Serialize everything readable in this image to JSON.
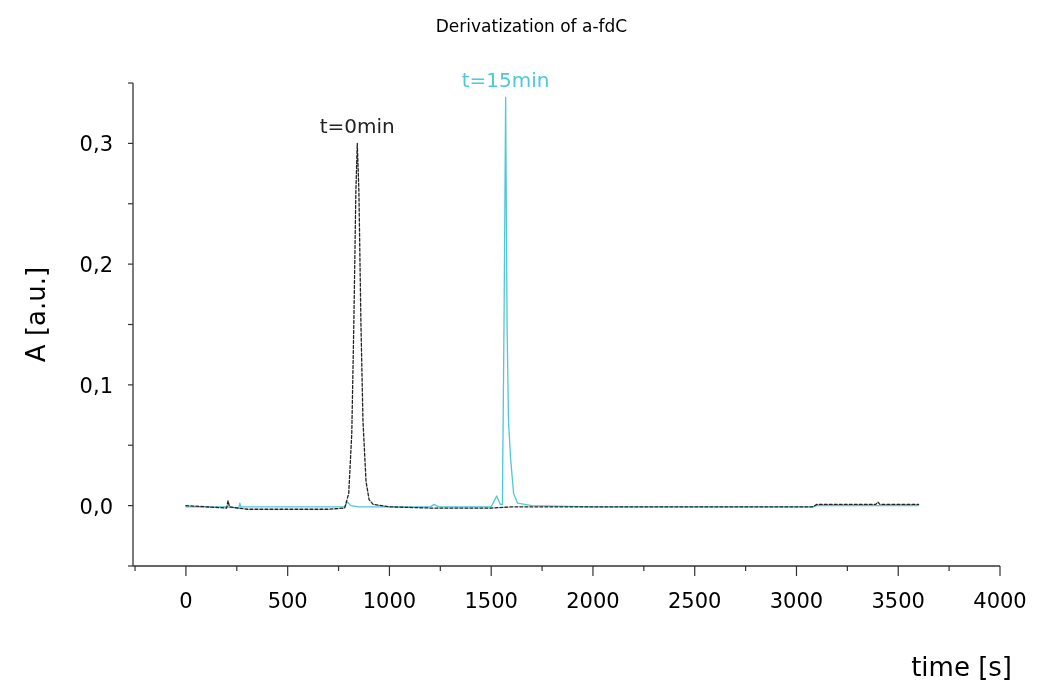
{
  "chart_data": {
    "type": "line",
    "title": "Derivatization of a-fdC",
    "xlabel": "time [s]",
    "ylabel": "A [a.u.]",
    "xlim": [
      -260,
      4000
    ],
    "ylim": [
      -0.05,
      0.35
    ],
    "xticks": [
      {
        "value": -250,
        "label": null
      },
      0,
      {
        "value": 250,
        "label": null
      },
      500,
      {
        "value": 750,
        "label": null
      },
      1000,
      {
        "value": 1250,
        "label": null
      },
      1500,
      {
        "value": 1750,
        "label": null
      },
      2000,
      {
        "value": 2250,
        "label": null
      },
      2500,
      {
        "value": 2750,
        "label": null
      },
      3000,
      {
        "value": 3250,
        "label": null
      },
      3500,
      {
        "value": 3750,
        "label": null
      },
      4000
    ],
    "yticks": [
      {
        "value": -0.05,
        "label": null
      },
      {
        "value": 0,
        "label": "0,0"
      },
      {
        "value": 0.05,
        "label": null
      },
      {
        "value": 0.1,
        "label": "0,1"
      },
      {
        "value": 0.15,
        "label": null
      },
      {
        "value": 0.2,
        "label": "0,2"
      },
      {
        "value": 0.25,
        "label": null
      },
      {
        "value": 0.3,
        "label": "0,3"
      },
      {
        "value": 0.35,
        "label": null
      }
    ],
    "grid": false,
    "series": [
      {
        "color": "#222222",
        "line_style": "dashed",
        "x": [
          0,
          100,
          200,
          207,
          214,
          300,
          500,
          700,
          780,
          800,
          815,
          825,
          835,
          842,
          850,
          860,
          870,
          885,
          900,
          920,
          1000,
          1200,
          1500,
          1600,
          2000,
          2500,
          3000,
          3080,
          3100,
          3300,
          3390,
          3400,
          3410,
          3500,
          3600
        ],
        "values": [
          0,
          -0.001,
          -0.002,
          0.004,
          -0.001,
          -0.003,
          -0.003,
          -0.003,
          -0.002,
          0.01,
          0.06,
          0.15,
          0.26,
          0.3,
          0.26,
          0.15,
          0.07,
          0.02,
          0.005,
          0.001,
          -0.001,
          -0.002,
          -0.002,
          -0.001,
          -0.001,
          -0.001,
          -0.001,
          -0.001,
          0.001,
          0.001,
          0.001,
          0.003,
          0.001,
          0.001,
          0.001
        ]
      },
      {
        "color": "#4ec9d6",
        "line_style": "solid",
        "x": [
          0,
          200,
          260,
          265,
          270,
          400,
          700,
          780,
          793,
          810,
          850,
          1000,
          1200,
          1220,
          1240,
          1400,
          1500,
          1527,
          1545,
          1555,
          1563,
          1571,
          1578,
          1585,
          1595,
          1610,
          1630,
          1700,
          2000,
          2500,
          3000,
          3080,
          3100,
          3300,
          3600
        ],
        "values": [
          -0.001,
          -0.001,
          -0.002,
          0.002,
          -0.001,
          -0.001,
          -0.001,
          -0.001,
          0.003,
          0.0,
          -0.001,
          -0.001,
          -0.001,
          0.001,
          -0.001,
          -0.001,
          -0.001,
          0.008,
          0.001,
          0.001,
          0.15,
          0.338,
          0.15,
          0.07,
          0.04,
          0.01,
          0.002,
          0.0,
          -0.001,
          -0.001,
          -0.001,
          -0.001,
          0.0,
          0.0,
          0.0
        ]
      }
    ],
    "annotations": [
      {
        "text": "t=0min",
        "x": 842,
        "y": 0.3
      },
      {
        "text": "t=15min",
        "x": 1571,
        "y": 0.338
      }
    ]
  }
}
